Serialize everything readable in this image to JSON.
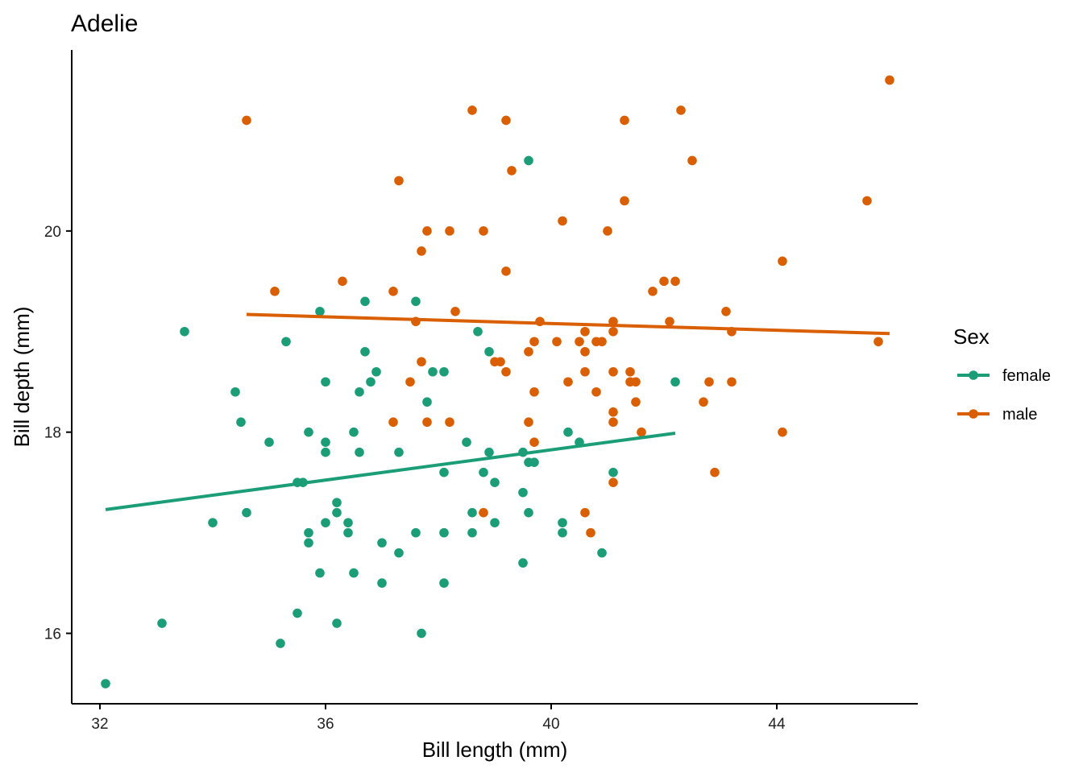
{
  "chart_data": {
    "type": "scatter",
    "title": "Adelie",
    "xlabel": "Bill length (mm)",
    "ylabel": "Bill depth (mm)",
    "xlim": [
      31.5,
      46.5
    ],
    "ylim": [
      15.3,
      21.8
    ],
    "xticks": [
      32,
      36,
      40,
      44
    ],
    "yticks": [
      16,
      18,
      20
    ],
    "grid": false,
    "legend": {
      "title": "Sex",
      "position": "right"
    },
    "series": [
      {
        "name": "female",
        "color": "#1B9E77",
        "trend": {
          "x": [
            32.1,
            42.2
          ],
          "y": [
            17.23,
            17.99
          ]
        },
        "points": [
          [
            32.1,
            15.5
          ],
          [
            33.1,
            16.1
          ],
          [
            33.5,
            19.0
          ],
          [
            34.0,
            17.1
          ],
          [
            34.4,
            18.4
          ],
          [
            34.5,
            18.1
          ],
          [
            34.6,
            17.2
          ],
          [
            35.0,
            17.9
          ],
          [
            35.2,
            15.9
          ],
          [
            35.3,
            18.9
          ],
          [
            35.5,
            17.5
          ],
          [
            35.5,
            16.2
          ],
          [
            35.6,
            17.5
          ],
          [
            35.7,
            18.0
          ],
          [
            35.7,
            17.0
          ],
          [
            35.7,
            16.9
          ],
          [
            35.9,
            19.2
          ],
          [
            35.9,
            16.6
          ],
          [
            36.0,
            18.5
          ],
          [
            36.0,
            17.9
          ],
          [
            36.0,
            17.8
          ],
          [
            36.0,
            17.1
          ],
          [
            36.2,
            17.3
          ],
          [
            36.2,
            17.2
          ],
          [
            36.2,
            16.1
          ],
          [
            36.4,
            17.1
          ],
          [
            36.4,
            17.0
          ],
          [
            36.5,
            18.0
          ],
          [
            36.5,
            16.6
          ],
          [
            36.6,
            18.4
          ],
          [
            36.6,
            17.8
          ],
          [
            36.7,
            19.3
          ],
          [
            36.7,
            18.8
          ],
          [
            36.8,
            18.5
          ],
          [
            36.9,
            18.6
          ],
          [
            37.0,
            16.9
          ],
          [
            37.0,
            16.5
          ],
          [
            37.3,
            17.8
          ],
          [
            37.3,
            16.8
          ],
          [
            37.6,
            19.3
          ],
          [
            37.6,
            17.0
          ],
          [
            37.7,
            16.0
          ],
          [
            37.8,
            18.3
          ],
          [
            37.9,
            18.6
          ],
          [
            38.1,
            18.6
          ],
          [
            38.1,
            17.6
          ],
          [
            38.1,
            17.0
          ],
          [
            38.1,
            16.5
          ],
          [
            38.5,
            17.9
          ],
          [
            38.6,
            17.2
          ],
          [
            38.6,
            17.0
          ],
          [
            38.7,
            19.0
          ],
          [
            38.8,
            17.6
          ],
          [
            38.9,
            18.8
          ],
          [
            38.9,
            17.8
          ],
          [
            39.0,
            17.5
          ],
          [
            39.0,
            17.1
          ],
          [
            39.5,
            17.8
          ],
          [
            39.5,
            17.4
          ],
          [
            39.5,
            16.7
          ],
          [
            39.6,
            20.7
          ],
          [
            39.6,
            17.7
          ],
          [
            39.6,
            17.2
          ],
          [
            39.7,
            17.7
          ],
          [
            40.2,
            17.1
          ],
          [
            40.2,
            17.0
          ],
          [
            40.3,
            18.0
          ],
          [
            40.5,
            17.9
          ],
          [
            40.9,
            16.8
          ],
          [
            41.1,
            17.6
          ],
          [
            42.2,
            18.5
          ]
        ]
      },
      {
        "name": "male",
        "color": "#D95F02",
        "trend": {
          "x": [
            34.6,
            46.0
          ],
          "y": [
            19.17,
            18.98
          ]
        },
        "points": [
          [
            34.6,
            21.1
          ],
          [
            35.1,
            19.4
          ],
          [
            36.3,
            19.5
          ],
          [
            37.2,
            19.4
          ],
          [
            37.2,
            18.1
          ],
          [
            37.3,
            20.5
          ],
          [
            37.5,
            18.5
          ],
          [
            37.6,
            19.1
          ],
          [
            37.7,
            19.8
          ],
          [
            37.7,
            18.7
          ],
          [
            37.8,
            20.0
          ],
          [
            37.8,
            18.1
          ],
          [
            38.2,
            20.0
          ],
          [
            38.2,
            18.1
          ],
          [
            38.3,
            19.2
          ],
          [
            38.6,
            21.2
          ],
          [
            38.8,
            20.0
          ],
          [
            38.8,
            17.2
          ],
          [
            39.0,
            18.7
          ],
          [
            39.1,
            18.7
          ],
          [
            39.2,
            21.1
          ],
          [
            39.2,
            19.6
          ],
          [
            39.2,
            18.6
          ],
          [
            39.3,
            20.6
          ],
          [
            39.6,
            18.8
          ],
          [
            39.6,
            18.1
          ],
          [
            39.7,
            18.9
          ],
          [
            39.7,
            18.4
          ],
          [
            39.7,
            17.9
          ],
          [
            39.8,
            19.1
          ],
          [
            40.1,
            18.9
          ],
          [
            40.2,
            20.1
          ],
          [
            40.3,
            18.5
          ],
          [
            40.5,
            18.9
          ],
          [
            40.6,
            19.0
          ],
          [
            40.6,
            18.8
          ],
          [
            40.6,
            18.6
          ],
          [
            40.6,
            17.2
          ],
          [
            40.7,
            17.0
          ],
          [
            40.8,
            18.9
          ],
          [
            40.8,
            18.4
          ],
          [
            40.9,
            18.9
          ],
          [
            41.0,
            20.0
          ],
          [
            41.1,
            19.1
          ],
          [
            41.1,
            19.0
          ],
          [
            41.1,
            18.6
          ],
          [
            41.1,
            18.2
          ],
          [
            41.1,
            18.1
          ],
          [
            41.1,
            17.5
          ],
          [
            41.3,
            21.1
          ],
          [
            41.3,
            20.3
          ],
          [
            41.4,
            18.6
          ],
          [
            41.4,
            18.5
          ],
          [
            41.5,
            18.5
          ],
          [
            41.5,
            18.3
          ],
          [
            41.6,
            18.0
          ],
          [
            41.8,
            19.4
          ],
          [
            42.0,
            19.5
          ],
          [
            42.1,
            19.1
          ],
          [
            42.2,
            19.5
          ],
          [
            42.3,
            21.2
          ],
          [
            42.5,
            20.7
          ],
          [
            42.7,
            18.3
          ],
          [
            42.8,
            18.5
          ],
          [
            42.9,
            17.6
          ],
          [
            43.1,
            19.2
          ],
          [
            43.2,
            19.0
          ],
          [
            43.2,
            18.5
          ],
          [
            44.1,
            19.7
          ],
          [
            44.1,
            18.0
          ],
          [
            45.6,
            20.3
          ],
          [
            45.8,
            18.9
          ],
          [
            46.0,
            21.5
          ]
        ]
      }
    ]
  }
}
